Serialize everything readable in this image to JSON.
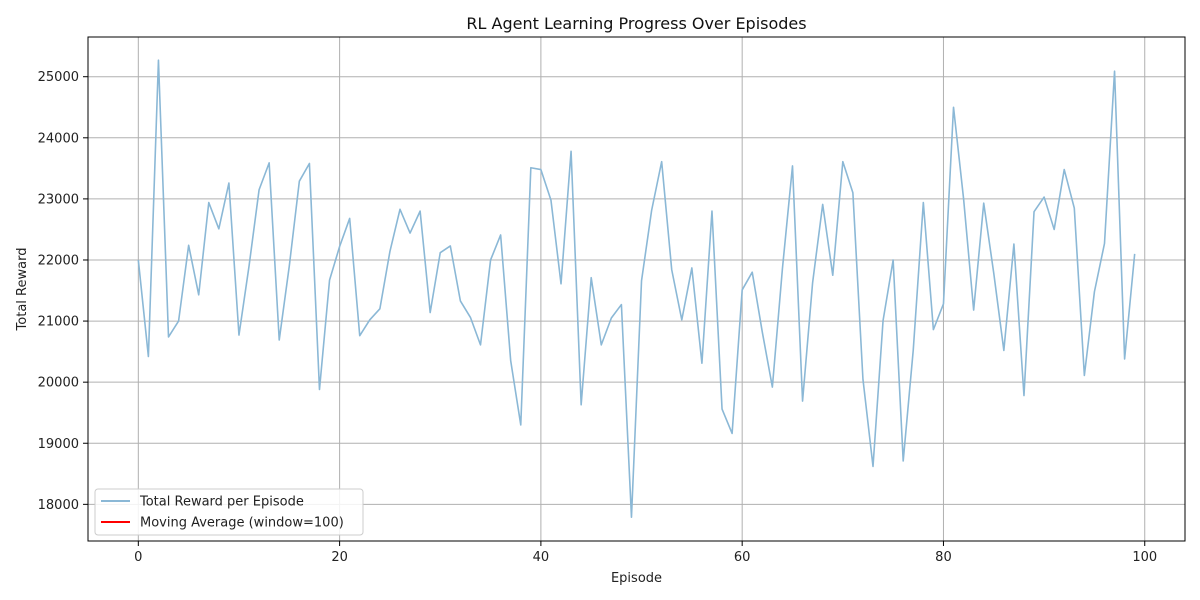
{
  "chart_data": {
    "type": "line",
    "title": "RL Agent Learning Progress Over Episodes",
    "xlabel": "Episode",
    "ylabel": "Total Reward",
    "xlim": [
      -5,
      104
    ],
    "ylim": [
      17400,
      25650
    ],
    "xticks": [
      0,
      20,
      40,
      60,
      80,
      100
    ],
    "yticks": [
      18000,
      19000,
      20000,
      21000,
      22000,
      23000,
      24000,
      25000
    ],
    "grid": true,
    "legend_position": "bottom-left",
    "series": [
      {
        "name": "Total Reward per Episode",
        "color": "#8bb8d6",
        "x": [
          0,
          1,
          2,
          3,
          4,
          5,
          6,
          7,
          8,
          9,
          10,
          11,
          12,
          13,
          14,
          15,
          16,
          17,
          18,
          19,
          20,
          21,
          22,
          23,
          24,
          25,
          26,
          27,
          28,
          29,
          30,
          31,
          32,
          33,
          34,
          35,
          36,
          37,
          38,
          39,
          40,
          41,
          42,
          43,
          44,
          45,
          46,
          47,
          48,
          49,
          50,
          51,
          52,
          53,
          54,
          55,
          56,
          57,
          58,
          59,
          60,
          61,
          62,
          63,
          64,
          65,
          66,
          67,
          68,
          69,
          70,
          71,
          72,
          73,
          74,
          75,
          76,
          77,
          78,
          79,
          80,
          81,
          82,
          83,
          84,
          85,
          86,
          87,
          88,
          89,
          90,
          91,
          92,
          93,
          94,
          95,
          96,
          97,
          98,
          99
        ],
        "values": [
          22000,
          20420,
          25270,
          20740,
          21000,
          22240,
          21430,
          22940,
          22510,
          23260,
          20770,
          21900,
          23150,
          23590,
          20690,
          21900,
          23290,
          23580,
          19880,
          21670,
          22220,
          22680,
          20760,
          21020,
          21200,
          22140,
          22830,
          22440,
          22800,
          21140,
          22120,
          22230,
          21330,
          21060,
          20610,
          22000,
          22410,
          20350,
          19300,
          23510,
          23480,
          22980,
          21610,
          23780,
          19630,
          21710,
          20610,
          21050,
          21270,
          17790,
          21660,
          22810,
          23610,
          21840,
          21020,
          21870,
          20310,
          22800,
          19560,
          19160,
          21510,
          21800,
          20820,
          19920,
          21860,
          23540,
          19690,
          21630,
          22910,
          21750,
          23610,
          23100,
          20050,
          18620,
          21010,
          22000,
          18710,
          20530,
          22940,
          20860,
          21280,
          24500,
          23000,
          21180,
          22930,
          21780,
          20520,
          22260,
          19780,
          22790,
          23030,
          22500,
          23480,
          22850,
          20110,
          21480,
          22270,
          25090,
          20380,
          22100
        ]
      },
      {
        "name": "Moving Average (window=100)",
        "color": "#ff0000",
        "x": [],
        "values": []
      }
    ]
  }
}
